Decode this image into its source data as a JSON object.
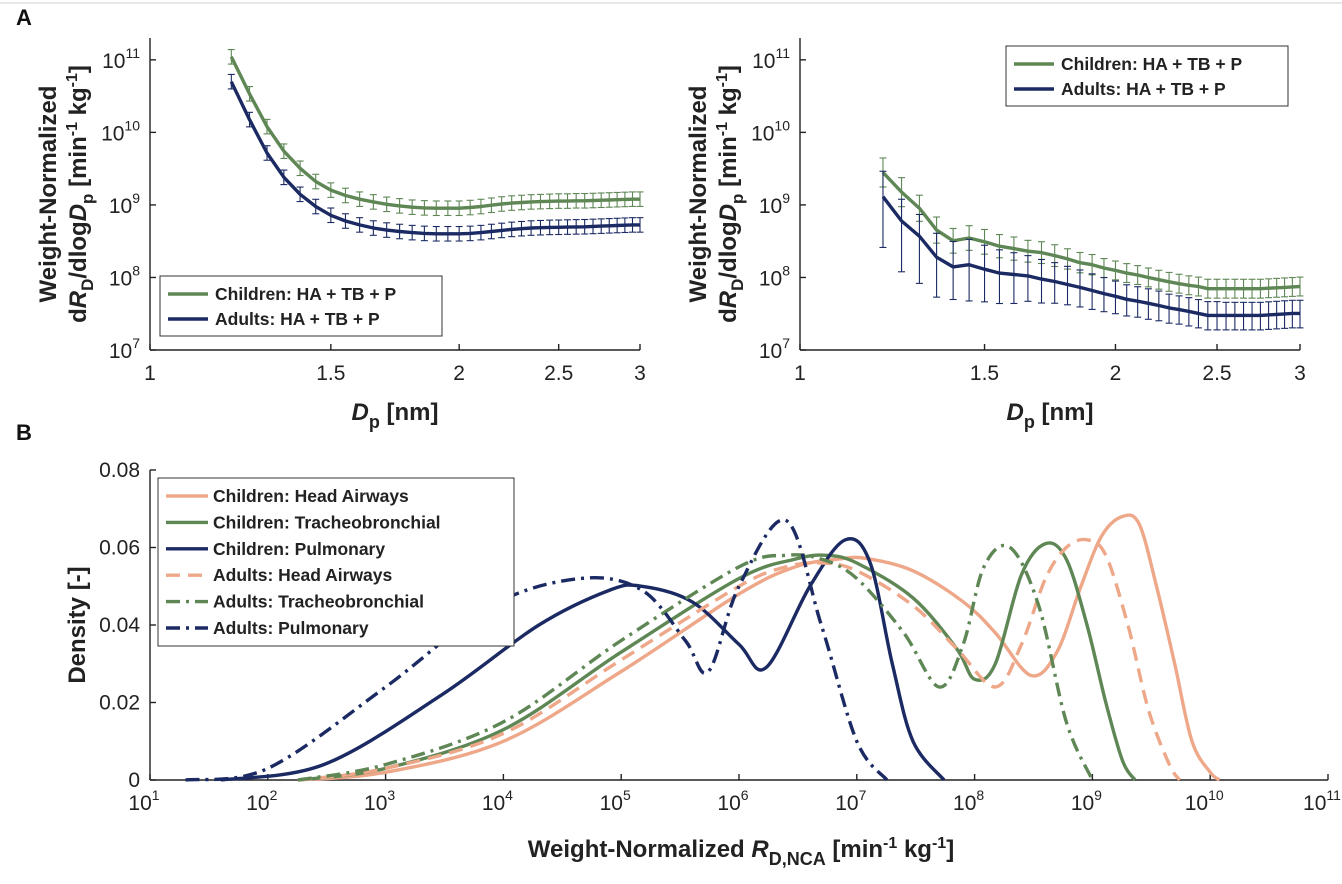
{
  "panels": {
    "a_label": "A",
    "b_label": "B"
  },
  "colors": {
    "green": "#5e8755",
    "navy": "#1b2a63",
    "salmon": "#eea889"
  },
  "chart_data": [
    {
      "type": "line",
      "title": "",
      "xlabel": {
        "main": "D",
        "sub": "p",
        "unit": " [nm]"
      },
      "ylabel": {
        "line1": "Weight-Normalized",
        "pre": "d",
        "R": "R",
        "Rsub": "D",
        "mid": "/dlog",
        "D": "D",
        "Dsub": "p",
        "unit": " [min",
        "exp1": "-1",
        "kg": " kg",
        "exp2": "-1",
        "close": "]"
      },
      "xscale": "log",
      "yscale": "log",
      "xlim": [
        1,
        3
      ],
      "ylim": [
        10000000.0,
        200000000000.0
      ],
      "xticks": [
        1,
        1.5,
        2,
        2.5,
        3
      ],
      "xtick_labels": [
        "1",
        "1.5",
        "2",
        "2.5",
        "3"
      ],
      "yticks": [
        10000000.0,
        100000000.0,
        1000000000.0,
        10000000000.0,
        100000000000.0
      ],
      "ytick_exps": [
        "7",
        "8",
        "9",
        "10",
        "11"
      ],
      "ytick_base": "10",
      "legend_position": "bottom-left",
      "x": [
        1.2,
        1.25,
        1.3,
        1.35,
        1.4,
        1.45,
        1.5,
        1.55,
        1.6,
        1.65,
        1.7,
        1.75,
        1.8,
        1.85,
        1.9,
        1.95,
        2.0,
        2.05,
        2.1,
        2.15,
        2.2,
        2.25,
        2.3,
        2.35,
        2.4,
        2.45,
        2.5,
        2.55,
        2.6,
        2.65,
        2.7,
        2.75,
        2.8,
        2.85,
        2.9,
        2.95,
        3.0
      ],
      "series": [
        {
          "name": "Children: HA + TB + P",
          "color": "green",
          "dash": "solid",
          "values": [
            110000000000.0,
            34000000000.0,
            12000000000.0,
            5500000000.0,
            3200000000.0,
            2100000000.0,
            1600000000.0,
            1350000000.0,
            1200000000.0,
            1100000000.0,
            1020000000.0,
            970000000.0,
            930000000.0,
            910000000.0,
            900000000.0,
            900000000.0,
            900000000.0,
            920000000.0,
            950000000.0,
            990000000.0,
            1030000000.0,
            1060000000.0,
            1080000000.0,
            1100000000.0,
            1110000000.0,
            1120000000.0,
            1130000000.0,
            1130000000.0,
            1140000000.0,
            1140000000.0,
            1150000000.0,
            1160000000.0,
            1170000000.0,
            1180000000.0,
            1190000000.0,
            1200000000.0,
            1200000000.0
          ],
          "err": 0.1
        },
        {
          "name": "Adults: HA + TB + P",
          "color": "navy",
          "dash": "solid",
          "values": [
            50000000000.0,
            15000000000.0,
            5200000000.0,
            2400000000.0,
            1400000000.0,
            950000000.0,
            720000000.0,
            600000000.0,
            530000000.0,
            480000000.0,
            450000000.0,
            430000000.0,
            415000000.0,
            405000000.0,
            400000000.0,
            400000000.0,
            400000000.0,
            405000000.0,
            415000000.0,
            430000000.0,
            445000000.0,
            460000000.0,
            470000000.0,
            480000000.0,
            485000000.0,
            490000000.0,
            492000000.0,
            495000000.0,
            498000000.0,
            500000000.0,
            505000000.0,
            510000000.0,
            515000000.0,
            520000000.0,
            525000000.0,
            530000000.0,
            530000000.0
          ],
          "err": 0.1
        }
      ]
    },
    {
      "type": "line",
      "title": "",
      "xlabel": {
        "main": "D",
        "sub": "p",
        "unit": " [nm]"
      },
      "ylabel": {
        "line1": "Weight-Normalized",
        "pre": "d",
        "R": "R",
        "Rsub": "D",
        "mid": "/dlog",
        "D": "D",
        "Dsub": "p",
        "unit": " [min",
        "exp1": "-1",
        "kg": " kg",
        "exp2": "-1",
        "close": "]"
      },
      "xscale": "log",
      "yscale": "log",
      "xlim": [
        1,
        3
      ],
      "ylim": [
        10000000.0,
        200000000000.0
      ],
      "xticks": [
        1,
        1.5,
        2,
        2.5,
        3
      ],
      "xtick_labels": [
        "1",
        "1.5",
        "2",
        "2.5",
        "3"
      ],
      "yticks": [
        10000000.0,
        100000000.0,
        1000000000.0,
        10000000000.0,
        100000000000.0
      ],
      "ytick_exps": [
        "7",
        "8",
        "9",
        "10",
        "11"
      ],
      "ytick_base": "10",
      "legend_position": "top-right",
      "x": [
        1.2,
        1.25,
        1.3,
        1.35,
        1.4,
        1.45,
        1.5,
        1.55,
        1.6,
        1.65,
        1.7,
        1.75,
        1.8,
        1.85,
        1.9,
        1.95,
        2.0,
        2.05,
        2.1,
        2.15,
        2.2,
        2.25,
        2.3,
        2.35,
        2.4,
        2.45,
        2.5,
        2.55,
        2.6,
        2.65,
        2.7,
        2.75,
        2.8,
        2.85,
        2.9,
        2.95,
        3.0
      ],
      "series": [
        {
          "name": "Children: HA + TB + P",
          "color": "green",
          "dash": "solid",
          "values": [
            2800000000.0,
            1500000000.0,
            900000000.0,
            450000000.0,
            320000000.0,
            350000000.0,
            310000000.0,
            270000000.0,
            250000000.0,
            230000000.0,
            220000000.0,
            200000000.0,
            180000000.0,
            160000000.0,
            150000000.0,
            135000000.0,
            125000000.0,
            115000000.0,
            108000000.0,
            100000000.0,
            93000000.0,
            87000000.0,
            82000000.0,
            78000000.0,
            75000000.0,
            70000000.0,
            70000000.0,
            70000000.0,
            70000000.0,
            70000000.0,
            70000000.0,
            70000000.0,
            71000000.0,
            72000000.0,
            73000000.0,
            74000000.0,
            75000000.0
          ],
          "err_up": [
            0.2,
            0.2,
            0.18,
            0.18,
            0.17,
            0.17,
            0.17,
            0.16,
            0.16,
            0.15,
            0.15,
            0.15,
            0.14,
            0.14,
            0.14,
            0.13,
            0.13,
            0.13,
            0.13,
            0.13,
            0.13,
            0.13,
            0.13,
            0.13,
            0.13,
            0.13,
            0.13,
            0.13,
            0.13,
            0.13,
            0.13,
            0.13,
            0.13,
            0.13,
            0.13,
            0.13,
            0.13
          ],
          "err_dn": [
            0.2,
            0.2,
            0.18,
            0.18,
            0.17,
            0.17,
            0.17,
            0.16,
            0.16,
            0.15,
            0.15,
            0.15,
            0.14,
            0.14,
            0.14,
            0.13,
            0.13,
            0.13,
            0.13,
            0.13,
            0.13,
            0.13,
            0.13,
            0.13,
            0.13,
            0.13,
            0.13,
            0.13,
            0.13,
            0.13,
            0.13,
            0.13,
            0.13,
            0.13,
            0.13,
            0.13,
            0.13
          ]
        },
        {
          "name": "Adults: HA + TB + P",
          "color": "navy",
          "dash": "solid",
          "values": [
            1300000000.0,
            600000000.0,
            370000000.0,
            190000000.0,
            140000000.0,
            150000000.0,
            130000000.0,
            115000000.0,
            110000000.0,
            105000000.0,
            95000000.0,
            88000000.0,
            80000000.0,
            73000000.0,
            66000000.0,
            60000000.0,
            55000000.0,
            50000000.0,
            47000000.0,
            44000000.0,
            41000000.0,
            38000000.0,
            36000000.0,
            34000000.0,
            32000000.0,
            30000000.0,
            30000000.0,
            30000000.0,
            30000000.0,
            30000000.0,
            30000000.0,
            30000000.0,
            30500000.0,
            31000000.0,
            31500000.0,
            32000000.0,
            32000000.0
          ],
          "err_up": [
            0.35,
            0.3,
            0.3,
            0.33,
            0.35,
            0.35,
            0.33,
            0.32,
            0.3,
            0.28,
            0.27,
            0.26,
            0.25,
            0.24,
            0.23,
            0.22,
            0.21,
            0.2,
            0.2,
            0.2,
            0.2,
            0.19,
            0.19,
            0.19,
            0.19,
            0.19,
            0.19,
            0.18,
            0.18,
            0.18,
            0.18,
            0.18,
            0.18,
            0.18,
            0.18,
            0.18,
            0.18
          ],
          "err_dn": [
            0.7,
            0.7,
            0.65,
            0.55,
            0.45,
            0.5,
            0.45,
            0.42,
            0.4,
            0.35,
            0.33,
            0.3,
            0.28,
            0.27,
            0.26,
            0.25,
            0.24,
            0.23,
            0.22,
            0.22,
            0.21,
            0.21,
            0.2,
            0.2,
            0.2,
            0.2,
            0.2,
            0.2,
            0.2,
            0.2,
            0.2,
            0.2,
            0.2,
            0.2,
            0.2,
            0.2,
            0.2
          ]
        }
      ]
    },
    {
      "type": "line",
      "title": "",
      "xlabel": {
        "main": "Weight-Normalized ",
        "R": "R",
        "Rsub": "D,NCA",
        "unit": " [min",
        "exp1": "-1",
        "kg": " kg",
        "exp2": "-1",
        "close": "]"
      },
      "ylabel": {
        "main": "Density [-]"
      },
      "xscale": "log",
      "yscale": "linear",
      "xlim": [
        10,
        100000000000.0
      ],
      "ylim": [
        0,
        0.08
      ],
      "xtick_exps": [
        "1",
        "2",
        "3",
        "4",
        "5",
        "6",
        "7",
        "8",
        "9",
        "10",
        "11"
      ],
      "xtick_base": "10",
      "yticks": [
        0,
        0.02,
        0.04,
        0.06,
        0.08
      ],
      "ytick_labels": [
        "0",
        "0.02",
        "0.04",
        "0.06",
        "0.08"
      ],
      "legend_position": "top-left",
      "series": [
        {
          "name": "Children: Head Airways",
          "color": "salmon",
          "dash": "solid",
          "x": [
            180,
            1000.0,
            10000.0,
            100000.0,
            1000000.0,
            3000000.0,
            7000000.0,
            12000000.0,
            30000000.0,
            80000000.0,
            150000000.0,
            300000000.0,
            500000000.0,
            800000000.0,
            1200000000.0,
            1800000000.0,
            2500000000.0,
            3500000000.0,
            5000000000.0,
            7000000000.0,
            10000000000.0,
            12000000000.0
          ],
          "values": [
            0,
            0.002,
            0.01,
            0.028,
            0.048,
            0.055,
            0.057,
            0.0572,
            0.054,
            0.046,
            0.038,
            0.027,
            0.033,
            0.05,
            0.063,
            0.068,
            0.066,
            0.05,
            0.03,
            0.01,
            0.002,
            0
          ]
        },
        {
          "name": "Children: Tracheobronchial",
          "color": "green",
          "dash": "solid",
          "x": [
            180,
            1000.0,
            10000.0,
            100000.0,
            1000000.0,
            3000000.0,
            5500000.0,
            10000000.0,
            30000000.0,
            70000000.0,
            100000000.0,
            150000000.0,
            250000000.0,
            400000000.0,
            600000000.0,
            900000000.0,
            1300000000.0,
            1800000000.0,
            2300000000.0
          ],
          "values": [
            0,
            0.003,
            0.013,
            0.033,
            0.052,
            0.057,
            0.058,
            0.056,
            0.047,
            0.034,
            0.026,
            0.03,
            0.053,
            0.061,
            0.057,
            0.04,
            0.02,
            0.005,
            0
          ]
        },
        {
          "name": "Children: Pulmonary",
          "color": "navy",
          "dash": "solid",
          "x": [
            40,
            300,
            3000.0,
            20000.0,
            80000.0,
            150000.0,
            400000.0,
            1000000.0,
            1700000.0,
            4000000.0,
            8000000.0,
            13000000.0,
            20000000.0,
            30000000.0,
            55000000.0
          ],
          "values": [
            0,
            0.004,
            0.022,
            0.04,
            0.049,
            0.05,
            0.046,
            0.035,
            0.029,
            0.05,
            0.062,
            0.056,
            0.03,
            0.01,
            0
          ]
        },
        {
          "name": "Adults: Head Airways",
          "color": "salmon",
          "dash": "dash",
          "x": [
            180,
            1000.0,
            10000.0,
            100000.0,
            1000000.0,
            2500000.0,
            5000000.0,
            10000000.0,
            30000000.0,
            70000000.0,
            150000000.0,
            250000000.0,
            400000000.0,
            600000000.0,
            900000000.0,
            1300000000.0,
            2000000000.0,
            3000000000.0,
            4500000000.0,
            5500000000.0
          ],
          "values": [
            0,
            0.003,
            0.012,
            0.031,
            0.05,
            0.055,
            0.056,
            0.054,
            0.045,
            0.034,
            0.024,
            0.035,
            0.052,
            0.06,
            0.062,
            0.058,
            0.04,
            0.018,
            0.004,
            0
          ]
        },
        {
          "name": "Adults: Tracheobronchial",
          "color": "green",
          "dash": "dashdot",
          "x": [
            180,
            1000.0,
            10000.0,
            100000.0,
            1000000.0,
            2500000.0,
            5000000.0,
            10000000.0,
            25000000.0,
            50000000.0,
            80000000.0,
            120000000.0,
            200000000.0,
            350000000.0,
            600000000.0,
            1000000000.0
          ],
          "values": [
            0,
            0.004,
            0.015,
            0.036,
            0.055,
            0.058,
            0.057,
            0.052,
            0.038,
            0.024,
            0.035,
            0.055,
            0.06,
            0.045,
            0.015,
            0
          ]
        },
        {
          "name": "Adults: Pulmonary",
          "color": "navy",
          "dash": "dashdot",
          "x": [
            20,
            100,
            1000.0,
            8000.0,
            45000.0,
            150000.0,
            350000.0,
            550000.0,
            1000000.0,
            2500000.0,
            5000000.0,
            10000000.0,
            18000000.0
          ],
          "values": [
            0,
            0.003,
            0.024,
            0.045,
            0.052,
            0.049,
            0.036,
            0.028,
            0.05,
            0.067,
            0.04,
            0.01,
            0
          ]
        }
      ]
    }
  ]
}
